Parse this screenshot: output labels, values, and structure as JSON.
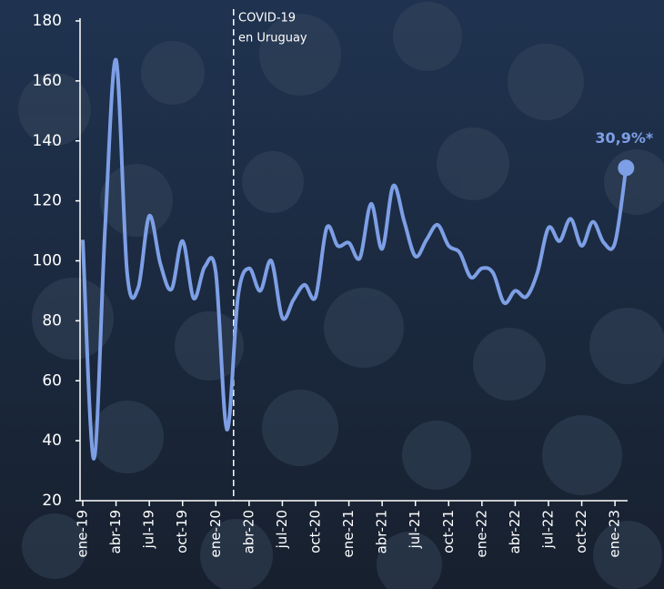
{
  "chart_data": {
    "type": "line",
    "categories": [
      "ene-19",
      null,
      null,
      "abr-19",
      null,
      null,
      "jul-19",
      null,
      null,
      "oct-19",
      null,
      null,
      "ene-20",
      null,
      null,
      "abr-20",
      null,
      null,
      "jul-20",
      null,
      null,
      "oct-20",
      null,
      null,
      "ene-21",
      null,
      null,
      "abr-21",
      null,
      null,
      "jul-21",
      null,
      null,
      "oct-21",
      null,
      null,
      "ene-22",
      null,
      null,
      "abr-22",
      null,
      null,
      "jul-22",
      null,
      null,
      "oct-22",
      null,
      null,
      "ene-23",
      null
    ],
    "series": [
      {
        "color": "#7d9fe6",
        "values": [
          107,
          34,
          110,
          167,
          96,
          91,
          115,
          99,
          90.5,
          106.6,
          87.5,
          98,
          96,
          43.7,
          88,
          97.5,
          90,
          100,
          81,
          87,
          92,
          88,
          111,
          105,
          106,
          101,
          119,
          104,
          125,
          113,
          101.5,
          107,
          112,
          105,
          102.7,
          94.5,
          97.5,
          96,
          86,
          90,
          88,
          96,
          111,
          106.6,
          114,
          105,
          113,
          106,
          106,
          131
        ]
      }
    ],
    "ylim": [
      20,
      180
    ],
    "yticks": [
      20,
      40,
      60,
      80,
      100,
      120,
      140,
      160,
      180
    ],
    "annotations": [
      "COVID-19",
      "en Uruguay"
    ],
    "end_label": "30,9%*"
  }
}
